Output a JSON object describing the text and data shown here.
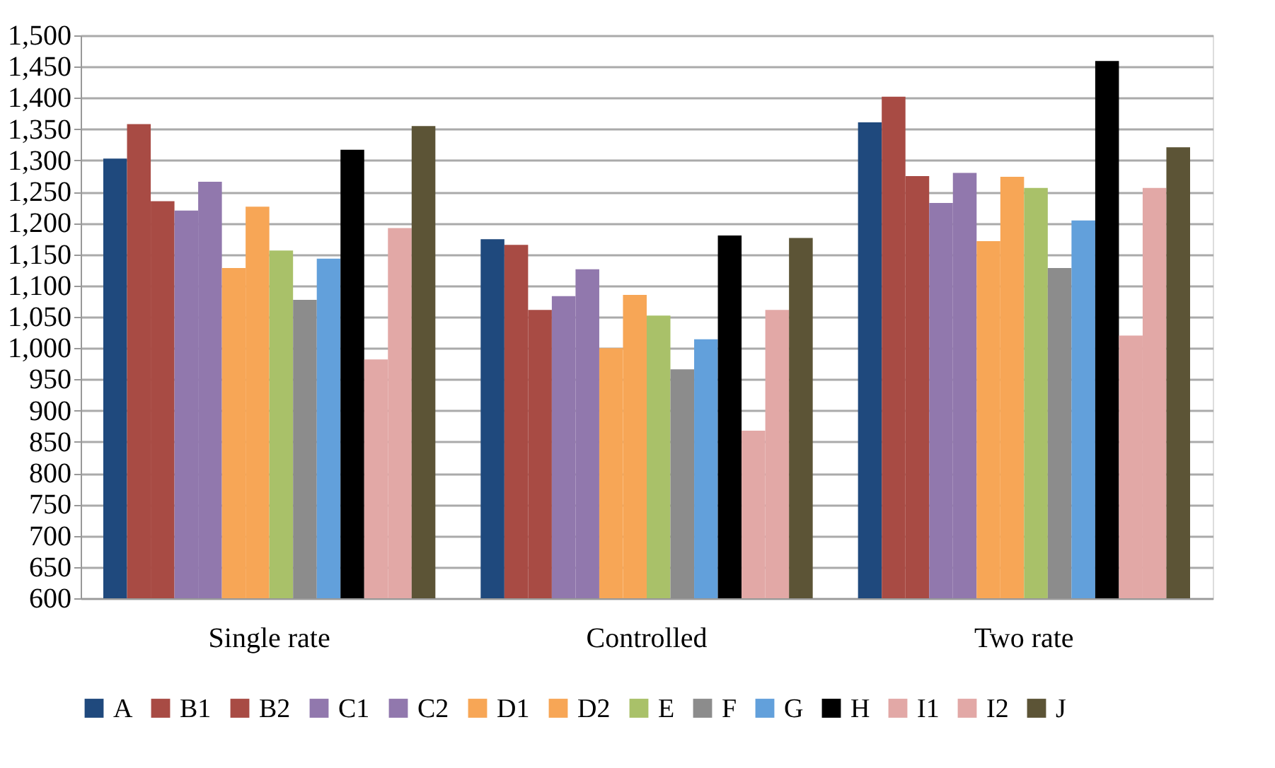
{
  "chart_data": {
    "type": "bar",
    "categories": [
      "Single rate",
      "Controlled",
      "Two rate"
    ],
    "series": [
      {
        "name": "A",
        "color": "#1f497d",
        "values": [
          1303,
          1174,
          1361
        ]
      },
      {
        "name": "B1",
        "color": "#a84b44",
        "values": [
          1358,
          1165,
          1402
        ]
      },
      {
        "name": "B2",
        "color": "#a84b44",
        "values": [
          1235,
          1061,
          1275
        ]
      },
      {
        "name": "C1",
        "color": "#9178ad",
        "values": [
          1220,
          1083,
          1232
        ]
      },
      {
        "name": "C2",
        "color": "#9178ad",
        "values": [
          1266,
          1126,
          1280
        ]
      },
      {
        "name": "D1",
        "color": "#f7a656",
        "values": [
          1128,
          1000,
          1171
        ]
      },
      {
        "name": "D2",
        "color": "#f7a656",
        "values": [
          1226,
          1085,
          1274
        ]
      },
      {
        "name": "E",
        "color": "#a9c169",
        "values": [
          1156,
          1052,
          1256
        ]
      },
      {
        "name": "F",
        "color": "#8c8c8c",
        "values": [
          1077,
          966,
          1128
        ]
      },
      {
        "name": "G",
        "color": "#62a0db",
        "values": [
          1143,
          1014,
          1204
        ]
      },
      {
        "name": "H",
        "color": "#000000",
        "values": [
          1317,
          1180,
          1459
        ]
      },
      {
        "name": "I1",
        "color": "#e2a8a6",
        "values": [
          982,
          868,
          1020
        ]
      },
      {
        "name": "I2",
        "color": "#e2a8a6",
        "values": [
          1192,
          1061,
          1256
        ]
      },
      {
        "name": "J",
        "color": "#5c5436",
        "values": [
          1355,
          1176,
          1321
        ]
      }
    ],
    "ylim": [
      600,
      1500
    ],
    "yticks": [
      600,
      650,
      700,
      750,
      800,
      850,
      900,
      950,
      {
        "value": 1000,
        "label": "1,000"
      },
      {
        "value": 1050,
        "label": "1,050"
      },
      {
        "value": 1100,
        "label": "1,100"
      },
      {
        "value": 1150,
        "label": "1,150"
      },
      {
        "value": 1200,
        "label": "1,200"
      },
      {
        "value": 1250,
        "label": "1,250"
      },
      {
        "value": 1300,
        "label": "1,300"
      },
      {
        "value": 1350,
        "label": "1,350"
      },
      {
        "value": 1400,
        "label": "1,400"
      },
      {
        "value": 1450,
        "label": "1,450"
      },
      {
        "value": 1500,
        "label": "1,500"
      }
    ],
    "grid": "y",
    "legend": "bottom"
  }
}
